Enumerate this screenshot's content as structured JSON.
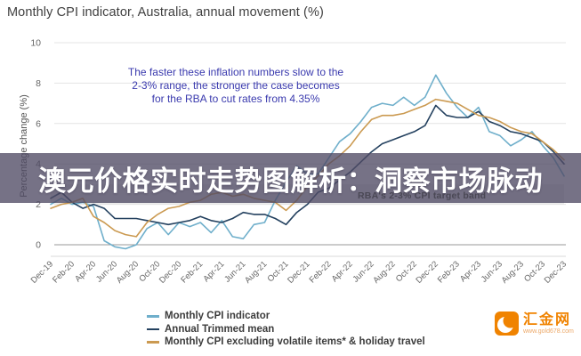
{
  "title": "Monthly CPI indicator, Australia, annual movement (%)",
  "annotation": {
    "line1": "The faster these inflation numbers slow to the",
    "line2": "2-3% range, the stronger the case becomes",
    "line3": "for the RBA to cut rates from 4.35%"
  },
  "overlay_banner": {
    "text": "澳元价格实时走势图解析：洞察市场脉动"
  },
  "watermark": {
    "brand": "汇金网",
    "site": "www.gold678.com"
  },
  "colors": {
    "monthly_cpi": "#6fafcb",
    "trimmed_mean": "#24415f",
    "cpi_ex_volatile": "#cb9a51",
    "annotation_text": "#3a3aae",
    "banner_bg": "rgba(80,74,100,0.78)",
    "logo_orange": "#f08300",
    "grid": "#e4e4e4",
    "zero_line": "#9a9a9a",
    "axis_text": "#666666",
    "target_band_fill": "#ececec"
  },
  "chart_data": {
    "type": "line",
    "title": "Monthly CPI indicator, Australia, annual movement (%)",
    "xlabel": "",
    "ylabel": "Percentage change (%)",
    "ylim": [
      -0.6,
      10
    ],
    "yticks": [
      0,
      2,
      4,
      6,
      8,
      10
    ],
    "grid": true,
    "legend_position": "bottom-left",
    "xtick_every": 2,
    "band": {
      "from": 2,
      "to": 3,
      "label": "RBA's 2-3% CPI target band"
    },
    "x": [
      "Dec-19",
      "Jan-20",
      "Feb-20",
      "Mar-20",
      "Apr-20",
      "May-20",
      "Jun-20",
      "Jul-20",
      "Aug-20",
      "Sep-20",
      "Oct-20",
      "Nov-20",
      "Dec-20",
      "Jan-21",
      "Feb-21",
      "Mar-21",
      "Apr-21",
      "May-21",
      "Jun-21",
      "Jul-21",
      "Aug-21",
      "Sep-21",
      "Oct-21",
      "Nov-21",
      "Dec-21",
      "Jan-22",
      "Feb-22",
      "Mar-22",
      "Apr-22",
      "May-22",
      "Jun-22",
      "Jul-22",
      "Aug-22",
      "Sep-22",
      "Oct-22",
      "Nov-22",
      "Dec-22",
      "Jan-23",
      "Feb-23",
      "Mar-23",
      "Apr-23",
      "May-23",
      "Jun-23",
      "Jul-23",
      "Aug-23",
      "Sep-23",
      "Oct-23",
      "Nov-23",
      "Dec-23"
    ],
    "series": [
      {
        "name": "Monthly CPI indicator",
        "color": "#6fafcb",
        "values": [
          2.0,
          2.3,
          2.0,
          2.1,
          1.9,
          0.2,
          -0.1,
          -0.2,
          0.0,
          0.8,
          1.1,
          0.5,
          1.1,
          0.9,
          1.1,
          0.6,
          1.2,
          0.4,
          0.3,
          1.0,
          1.1,
          2.2,
          3.1,
          3.9,
          3.5,
          3.5,
          4.3,
          5.1,
          5.5,
          6.1,
          6.8,
          7.0,
          6.9,
          7.3,
          6.9,
          7.3,
          8.4,
          7.5,
          6.8,
          6.3,
          6.8,
          5.6,
          5.4,
          4.9,
          5.2,
          5.6,
          4.9,
          4.3,
          3.4
        ]
      },
      {
        "name": "Annual Trimmed mean",
        "color": "#24415f",
        "values": [
          2.3,
          2.6,
          2.1,
          1.8,
          2.0,
          1.8,
          1.3,
          1.3,
          1.3,
          1.2,
          1.1,
          1.0,
          1.1,
          1.2,
          1.4,
          1.2,
          1.1,
          1.3,
          1.6,
          1.5,
          1.5,
          1.3,
          1.0,
          1.6,
          2.0,
          2.6,
          2.8,
          3.2,
          3.6,
          4.1,
          4.6,
          5.0,
          5.2,
          5.4,
          5.6,
          5.9,
          6.9,
          6.4,
          6.3,
          6.3,
          6.6,
          6.1,
          5.9,
          5.6,
          5.5,
          5.3,
          5.1,
          4.6,
          4.0
        ]
      },
      {
        "name": "Monthly CPI excluding volatile items* & holiday travel",
        "color": "#cb9a51",
        "values": [
          1.8,
          2.0,
          2.1,
          2.3,
          1.4,
          1.1,
          0.7,
          0.5,
          0.4,
          1.1,
          1.5,
          1.8,
          1.9,
          2.1,
          2.2,
          2.5,
          2.6,
          2.4,
          2.5,
          2.3,
          2.2,
          2.1,
          1.7,
          2.2,
          2.9,
          3.4,
          4.0,
          4.4,
          4.9,
          5.6,
          6.2,
          6.4,
          6.4,
          6.5,
          6.7,
          6.9,
          7.2,
          7.1,
          7.0,
          6.7,
          6.4,
          6.3,
          6.1,
          5.8,
          5.6,
          5.5,
          5.1,
          4.7,
          4.2
        ]
      }
    ]
  }
}
